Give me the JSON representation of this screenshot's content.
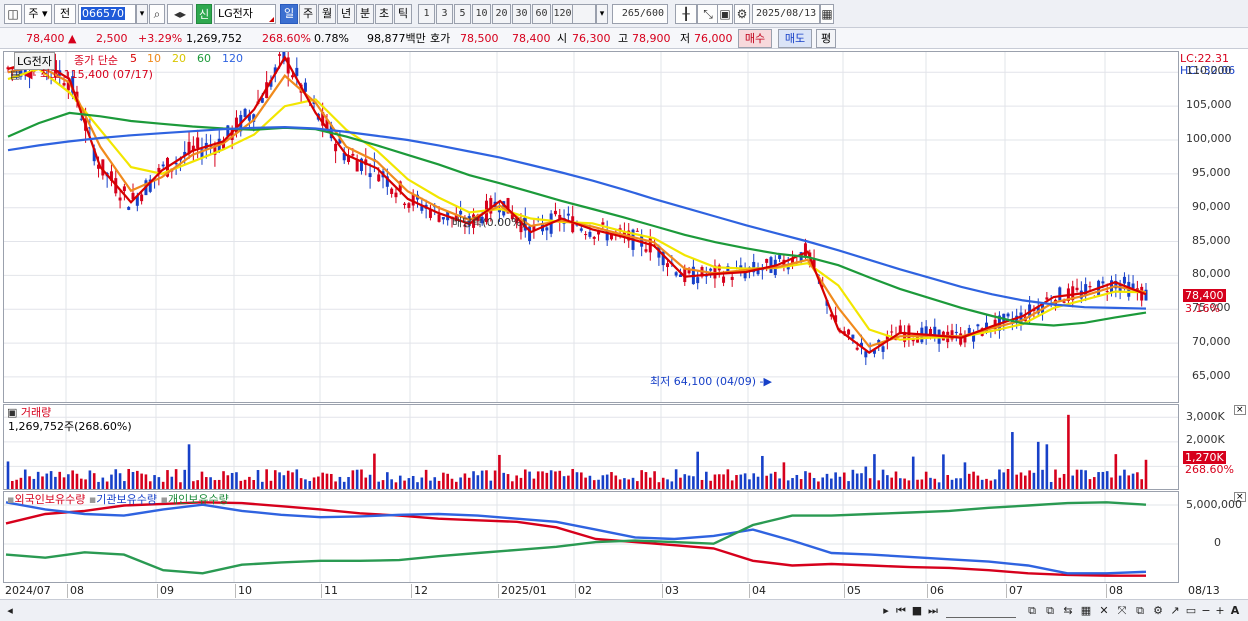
{
  "toolbar": {
    "period": "주",
    "range": "전",
    "stock_code": "066570",
    "new_badge": "신",
    "stock_name": "LG전자",
    "tabs": [
      {
        "label": "일",
        "active": true
      },
      {
        "label": "주",
        "active": false
      },
      {
        "label": "월",
        "active": false
      },
      {
        "label": "년",
        "active": false
      },
      {
        "label": "분",
        "active": false
      },
      {
        "label": "초",
        "active": false
      },
      {
        "label": "틱",
        "active": false
      }
    ],
    "intervals": [
      "1",
      "3",
      "5",
      "10",
      "20",
      "30",
      "60",
      "120"
    ],
    "count": "265",
    "count_max": "/600",
    "date": "2025/08/13"
  },
  "quote": {
    "price": "78,400",
    "change": "2,500",
    "change_pct": "+3.29%",
    "volume": "1,269,752",
    "volume_ratio": "268.60%",
    "turnover": "0.78%",
    "amount": "98,877백만",
    "ask_label": "호가",
    "ask": "78,500",
    "bid": "78,400",
    "open_label": "시",
    "open": "76,300",
    "high_label": "고",
    "high": "78,900",
    "low_label": "저",
    "low": "76,000",
    "buy": "매수",
    "sell": "매도",
    "eval": "평"
  },
  "price_panel": {
    "legend_name": "LG전자",
    "legend_ma": "종가 단순",
    "ma_periods": [
      "5",
      "10",
      "20",
      "60",
      "120"
    ],
    "high_marker": "최고 115,400 (07/17)",
    "low_marker": "최저 64,100 (04/09)",
    "dividend_marker": "배당락(0.00%)",
    "lc": "LC:22.31",
    "hc": "HC:-32.06",
    "last_price_tag": "78,400",
    "last_pct_tag": "3.16%"
  },
  "volume_panel": {
    "title": "거래량",
    "value": "1,269,752주(268.60%)",
    "tag": "1,270K",
    "tag_pct": "268.60%"
  },
  "holders_panel": {
    "series": [
      "외국인보유수량",
      "기관보유수량",
      "개인보유수량"
    ]
  },
  "x_labels": [
    "2024/07",
    "08",
    "09",
    "10",
    "11",
    "12",
    "2025/01",
    "02",
    "03",
    "04",
    "05",
    "06",
    "07",
    "08",
    "08/13"
  ],
  "colors": {
    "up": "#d6001c",
    "down": "#1740c8",
    "ma5": "#d60000",
    "ma10": "#f08a1c",
    "ma20": "#f2e600",
    "ma60": "#1c9a3a",
    "ma120": "#2f63e0"
  },
  "chart_data": [
    {
      "type": "line",
      "title": "LG전자",
      "note": "daily candlestick with simple moving averages",
      "y_ticks": [
        65000,
        70000,
        75000,
        80000,
        85000,
        90000,
        95000,
        100000,
        105000,
        110000
      ],
      "y_tick_labels": [
        "65,000",
        "70,000",
        "75,000",
        "80,000",
        "85,000",
        "90,000",
        "95,000",
        "100,000",
        "105,000",
        "110,000"
      ],
      "ylim": [
        61000,
        113000
      ],
      "x_tick_labels": [
        "2024/07",
        "08",
        "09",
        "10",
        "11",
        "12",
        "2025/01",
        "02",
        "03",
        "04",
        "05",
        "06",
        "07",
        "08"
      ],
      "series": [
        {
          "name": "5",
          "values": [
            110500,
            111800,
            109000,
            96000,
            90800,
            95500,
            98400,
            99800,
            104500,
            112200,
            104000,
            97800,
            95800,
            91300,
            89200,
            87600,
            91000,
            86400,
            88400,
            86800,
            85700,
            84400,
            79800,
            80200,
            80500,
            81500,
            83500,
            72000,
            68600,
            71500,
            71200,
            70800,
            72500,
            74000,
            76800,
            77400,
            79000,
            77200
          ]
        },
        {
          "name": "10",
          "values": [
            110000,
            111000,
            108500,
            99000,
            92500,
            94500,
            97800,
            99500,
            103000,
            109500,
            105500,
            99000,
            96800,
            92400,
            90000,
            88200,
            90300,
            87300,
            88100,
            87200,
            86000,
            84900,
            81000,
            80300,
            80800,
            81200,
            82300,
            75200,
            69500,
            71000,
            71100,
            71000,
            72200,
            73400,
            76000,
            77000,
            78400,
            77500
          ]
        },
        {
          "name": "20",
          "values": [
            109000,
            110500,
            107000,
            101500,
            96000,
            95000,
            96800,
            98600,
            100800,
            105000,
            106000,
            101500,
            98400,
            94200,
            91500,
            89300,
            89800,
            88400,
            87900,
            87700,
            86500,
            85500,
            83000,
            81200,
            81000,
            81100,
            81800,
            78500,
            72000,
            70500,
            70800,
            70900,
            71800,
            72800,
            75200,
            76400,
            77600,
            77500
          ]
        },
        {
          "name": "60",
          "values": [
            100500,
            102500,
            104000,
            103500,
            102800,
            102400,
            102000,
            101700,
            101500,
            101800,
            101600,
            100500,
            99200,
            97800,
            96400,
            94800,
            93600,
            92300,
            91000,
            89800,
            88600,
            87300,
            86000,
            84900,
            84000,
            83200,
            82700,
            81500,
            79700,
            78000,
            76600,
            75200,
            74000,
            72900,
            72600,
            73000,
            73800,
            74500
          ]
        },
        {
          "name": "120",
          "values": [
            98500,
            99200,
            99800,
            100300,
            100700,
            101000,
            101300,
            101600,
            101800,
            101900,
            101700,
            101200,
            100600,
            100000,
            99200,
            98300,
            97400,
            96300,
            95200,
            94000,
            92700,
            91300,
            90000,
            88700,
            87400,
            86200,
            85000,
            83700,
            82300,
            80900,
            79600,
            78300,
            77200,
            76300,
            75700,
            75300,
            75200,
            75100
          ]
        }
      ]
    },
    {
      "type": "bar",
      "title": "거래량",
      "y_ticks": [
        1000000,
        2000000,
        3000000
      ],
      "y_tick_labels": [
        "1,000K",
        "2,000K",
        "3,000K"
      ],
      "ylim": [
        0,
        3500000
      ]
    },
    {
      "type": "line",
      "title": "외국인보유수량 · 기관보유수량 · 개인보유수량",
      "y_tick_labels": [
        "5,000,000",
        "0"
      ],
      "series": [
        {
          "name": "외국인보유수량",
          "values": [
            0.7,
            0.82,
            0.86,
            0.93,
            0.95,
            0.97,
            0.96,
            0.92,
            0.88,
            0.83,
            0.8,
            0.76,
            0.74,
            0.72,
            0.65,
            0.5,
            0.46,
            0.42,
            0.38,
            0.22,
            0.16,
            0.18,
            0.16,
            0.14,
            0.13,
            0.1,
            0.06,
            0.04,
            0.03,
            0.03
          ]
        },
        {
          "name": "기관보유수량",
          "values": [
            0.97,
            0.88,
            0.82,
            0.8,
            0.88,
            0.94,
            0.86,
            0.81,
            0.78,
            0.79,
            0.81,
            0.82,
            0.8,
            0.76,
            0.72,
            0.62,
            0.52,
            0.5,
            0.54,
            0.62,
            0.48,
            0.32,
            0.3,
            0.27,
            0.24,
            0.21,
            0.16,
            0.06,
            0.06,
            0.08
          ]
        },
        {
          "name": "개인보유수량",
          "values": [
            0.3,
            0.26,
            0.33,
            0.3,
            0.1,
            0.06,
            0.17,
            0.2,
            0.22,
            0.22,
            0.23,
            0.28,
            0.32,
            0.36,
            0.4,
            0.46,
            0.48,
            0.46,
            0.44,
            0.68,
            0.8,
            0.8,
            0.82,
            0.84,
            0.86,
            0.9,
            0.93,
            0.96,
            0.97,
            0.94
          ]
        }
      ]
    }
  ]
}
